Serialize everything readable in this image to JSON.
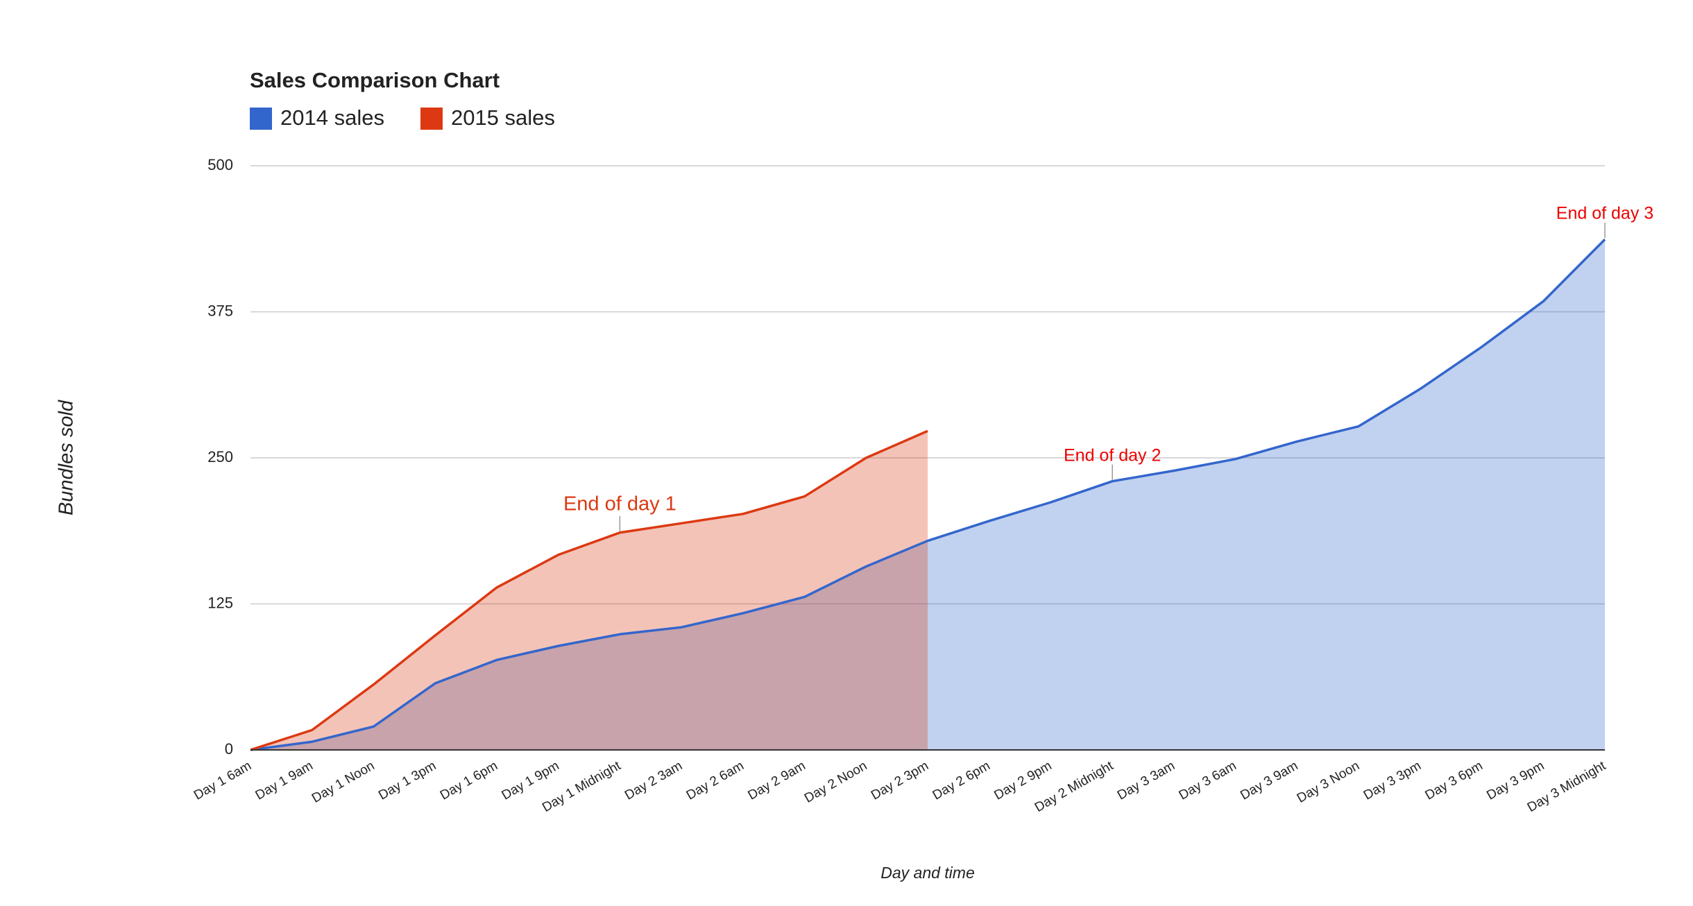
{
  "chart_data": {
    "type": "area",
    "title": "Sales Comparison Chart",
    "x_label": "Day and time",
    "y_label": "Bundles sold",
    "categories": [
      "Day 1 6am",
      "Day 1 9am",
      "Day 1 Noon",
      "Day 1 3pm",
      "Day 1 6pm",
      "Day 1 9pm",
      "Day 1 Midnight",
      "Day 2 3am",
      "Day 2 6am",
      "Day 2 9am",
      "Day 2 Noon",
      "Day 2 3pm",
      "Day 2 6pm",
      "Day 2 9pm",
      "Day 2 Midnight",
      "Day 3 3am",
      "Day 3 6am",
      "Day 3 9am",
      "Day 3 Noon",
      "Day 3 3pm",
      "Day 3 6pm",
      "Day 3 9pm",
      "Day 3 Midnight"
    ],
    "series": [
      {
        "name": "2014 sales",
        "color": "#3366cc",
        "values": [
          0,
          7,
          20,
          57,
          77,
          89,
          99,
          105,
          117,
          131,
          157,
          179,
          196,
          212,
          230,
          239,
          249,
          264,
          277,
          309,
          345,
          384,
          437
        ]
      },
      {
        "name": "2015 sales",
        "color": "#dc3912",
        "values": [
          0,
          17,
          56,
          98,
          139,
          167,
          186,
          194,
          202,
          217,
          250,
          273,
          null,
          null,
          null,
          null,
          null,
          null,
          null,
          null,
          null,
          null,
          null
        ]
      }
    ],
    "annotations": [
      {
        "text": "End of day 1",
        "series": "2015 sales",
        "category": "Day 1 Midnight"
      },
      {
        "text": "End of day 2",
        "series": "2014 sales",
        "category": "Day 2 Midnight"
      },
      {
        "text": "End of day 3",
        "series": "2014 sales",
        "category": "Day 3 Midnight"
      }
    ],
    "ylim": [
      0,
      500
    ],
    "yticks": [
      0,
      125,
      250,
      375,
      500
    ],
    "grid": true,
    "legend": "top"
  }
}
